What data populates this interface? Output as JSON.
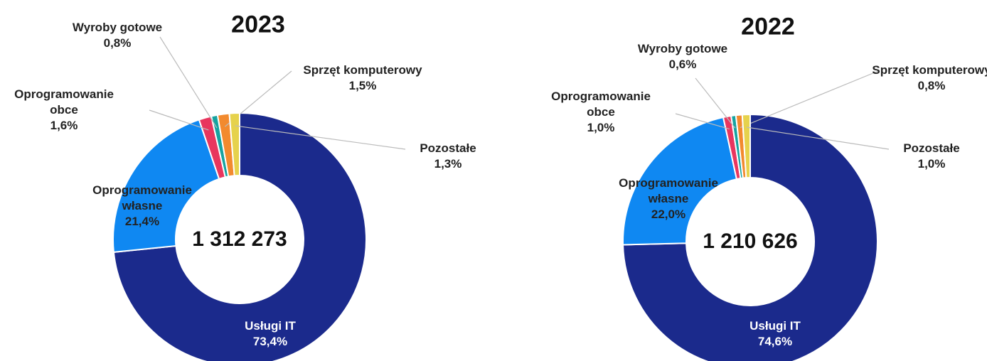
{
  "chart_data": [
    {
      "type": "donut",
      "title": "2023",
      "center_text": "1 312 273",
      "categories": [
        "Usługi IT",
        "Oprogramowanie własne",
        "Oprogramowanie obce",
        "Wyroby gotowe",
        "Sprzęt komputerowy",
        "Pozostałe"
      ],
      "values": [
        73.4,
        21.4,
        1.6,
        0.8,
        1.5,
        1.3
      ],
      "value_labels": [
        "73,4%",
        "21,4%",
        "1,6%",
        "0,8%",
        "1,5%",
        "1,3%"
      ],
      "colors": [
        "#1b2a8c",
        "#0f88f2",
        "#e8365e",
        "#16a3a0",
        "#f28a2e",
        "#e6d24c"
      ]
    },
    {
      "type": "donut",
      "title": "2022",
      "center_text": "1 210 626",
      "categories": [
        "Usługi IT",
        "Oprogramowanie własne",
        "Oprogramowanie obce",
        "Wyroby gotowe",
        "Sprzęt komputerowy",
        "Pozostałe"
      ],
      "values": [
        74.6,
        22.0,
        1.0,
        0.6,
        0.8,
        1.0
      ],
      "value_labels": [
        "74,6%",
        "22,0%",
        "1,0%",
        "0,6%",
        "0,8%",
        "1,0%"
      ],
      "colors": [
        "#1b2a8c",
        "#0f88f2",
        "#e8365e",
        "#16a3a0",
        "#f28a2e",
        "#e6d24c"
      ]
    }
  ]
}
